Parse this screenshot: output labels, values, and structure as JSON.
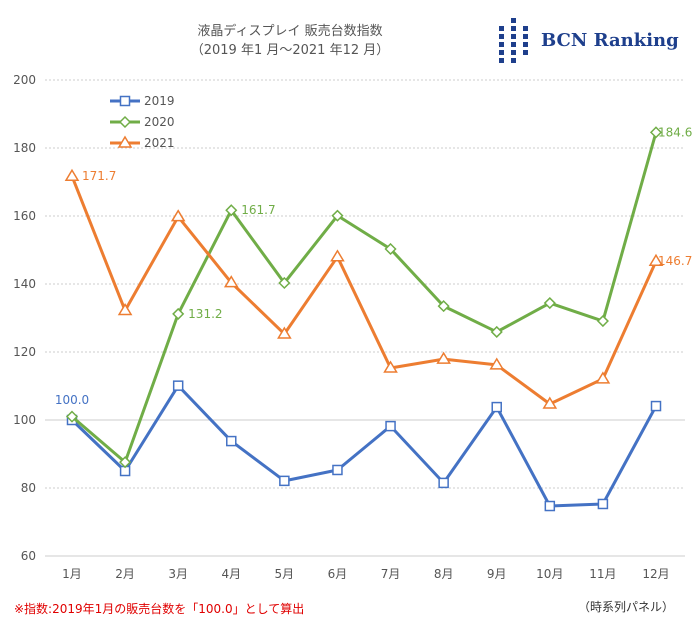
{
  "header": {
    "title": "液晶ディスプレイ 販売台数指数",
    "subtitle": "（2019 年1 月～2021 年12 月）"
  },
  "logo": {
    "text": "BCN Ranking",
    "color": "#1e3f8c"
  },
  "footer": {
    "note": "※指数:2019年1月の販売台数を「100.0」として算出",
    "source": "（時系列パネル）"
  },
  "chart_data": {
    "type": "line",
    "title": "液晶ディスプレイ 販売台数指数",
    "categories": [
      "1月",
      "2月",
      "3月",
      "4月",
      "5月",
      "6月",
      "7月",
      "8月",
      "9月",
      "10月",
      "11月",
      "12月"
    ],
    "ylim": [
      60,
      200
    ],
    "yticks": [
      60,
      80,
      100,
      120,
      140,
      160,
      180,
      200
    ],
    "grid": true,
    "legend": "top-left",
    "series": [
      {
        "name": "2019",
        "color": "#4472c4",
        "marker": "square",
        "values": [
          100.0,
          85.0,
          110.1,
          93.8,
          82.1,
          85.3,
          98.2,
          81.5,
          103.8,
          74.7,
          75.3,
          104.1
        ],
        "labels": [
          {
            "index": 0,
            "text": "100.0"
          }
        ]
      },
      {
        "name": "2020",
        "color": "#70ad47",
        "marker": "diamond",
        "values": [
          101.0,
          87.6,
          131.2,
          161.7,
          140.3,
          160.1,
          150.3,
          133.5,
          125.9,
          134.4,
          129.1,
          184.6
        ],
        "labels": [
          {
            "index": 2,
            "text": "131.2"
          },
          {
            "index": 3,
            "text": "161.7"
          },
          {
            "index": 11,
            "text": "184.6"
          }
        ]
      },
      {
        "name": "2021",
        "color": "#ed7d31",
        "marker": "triangle",
        "values": [
          171.7,
          132.2,
          159.8,
          140.4,
          125.3,
          148.0,
          115.3,
          117.9,
          116.2,
          104.7,
          112.1,
          146.7
        ],
        "labels": [
          {
            "index": 0,
            "text": "171.7"
          },
          {
            "index": 11,
            "text": "146.7"
          }
        ]
      }
    ],
    "base_marker_color": "#ff0000"
  }
}
